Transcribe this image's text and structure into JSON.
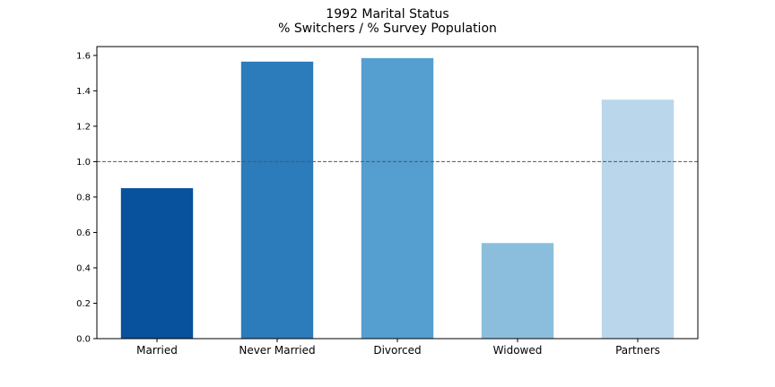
{
  "chart_data": {
    "type": "bar",
    "title": "1992 Marital Status",
    "subtitle": "% Switchers / % Survey Population",
    "xlabel": "",
    "ylabel": "",
    "categories": [
      "Married",
      "Never Married",
      "Divorced",
      "Widowed",
      "Partners"
    ],
    "values": [
      0.85,
      1.565,
      1.585,
      0.54,
      1.35
    ],
    "colors": [
      "#08519c",
      "#2c7bbb",
      "#549fcf",
      "#8bbedd",
      "#bad6eb"
    ],
    "ylim": [
      0,
      1.65
    ],
    "yticks": [
      0.0,
      0.2,
      0.4,
      0.6,
      0.8,
      1.0,
      1.2,
      1.4,
      1.6
    ],
    "reference_line": {
      "value": 1.0,
      "style": "dashed",
      "color": "#555555"
    },
    "grid": false,
    "legend": "none"
  }
}
